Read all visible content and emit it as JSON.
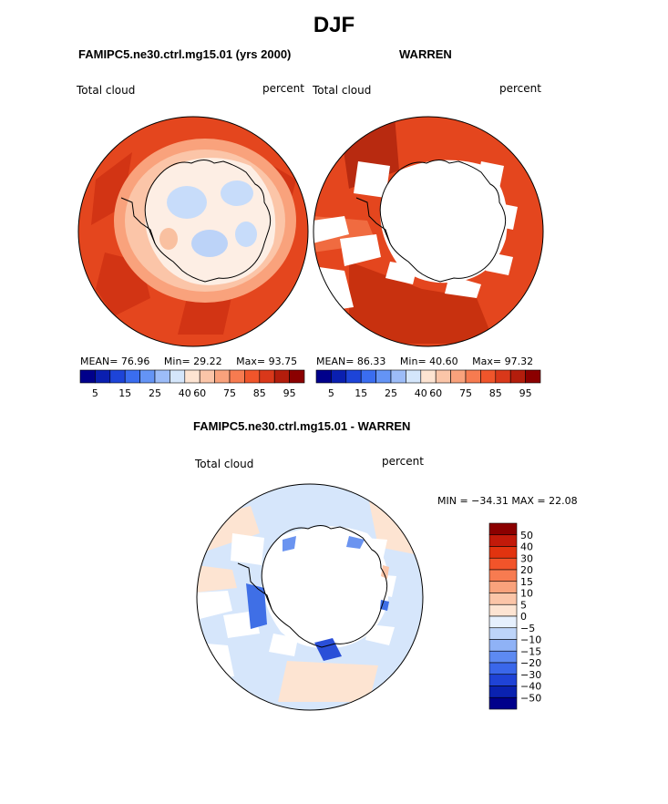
{
  "title": "DJF",
  "panel_left": {
    "title": "FAMIPC5.ne30.ctrl.mg15.01 (yrs 2000)",
    "variable": "Total cloud",
    "units": "percent",
    "mean": "76.96",
    "min": "29.22",
    "max": "93.75",
    "mean_label": "MEAN=",
    "min_label": "Min=",
    "max_label": "Max="
  },
  "panel_right": {
    "title": "WARREN",
    "variable": "Total cloud",
    "units": "percent",
    "mean": "86.33",
    "min": "40.60",
    "max": "97.32",
    "mean_label": "MEAN=",
    "min_label": "Min=",
    "max_label": "Max="
  },
  "panel_diff": {
    "title": "FAMIPC5.ne30.ctrl.mg15.01 - WARREN",
    "variable": "Total cloud",
    "units": "percent",
    "minmax": "MIN = −34.31 MAX =   22.08"
  },
  "abs_colorbar": {
    "colors": [
      "#00008b",
      "#0a1fb0",
      "#1d44d8",
      "#3a6df0",
      "#6494f5",
      "#9cbcf8",
      "#d4e6fb",
      "#fde4d2",
      "#fbc5a8",
      "#f9a27c",
      "#f77b50",
      "#f0552b",
      "#d9381a",
      "#b31d0c",
      "#8b0000"
    ],
    "labels": [
      "5",
      "15",
      "25",
      "40",
      "60",
      "75",
      "85",
      "95"
    ]
  },
  "diff_colorbar": {
    "colors": [
      "#8b0000",
      "#c21a0a",
      "#e2330f",
      "#f2542a",
      "#f77b50",
      "#f9a27c",
      "#fbc5a8",
      "#fde4d2",
      "#e6f0fd",
      "#bdd4f9",
      "#8fb2f6",
      "#5d8af2",
      "#3a67ea",
      "#1f43d6",
      "#0a22b0",
      "#00008b"
    ],
    "labels": [
      "50",
      "40",
      "30",
      "20",
      "15",
      "10",
      "5",
      "0",
      "−5",
      "−10",
      "−15",
      "−20",
      "−30",
      "−40",
      "−50"
    ]
  }
}
